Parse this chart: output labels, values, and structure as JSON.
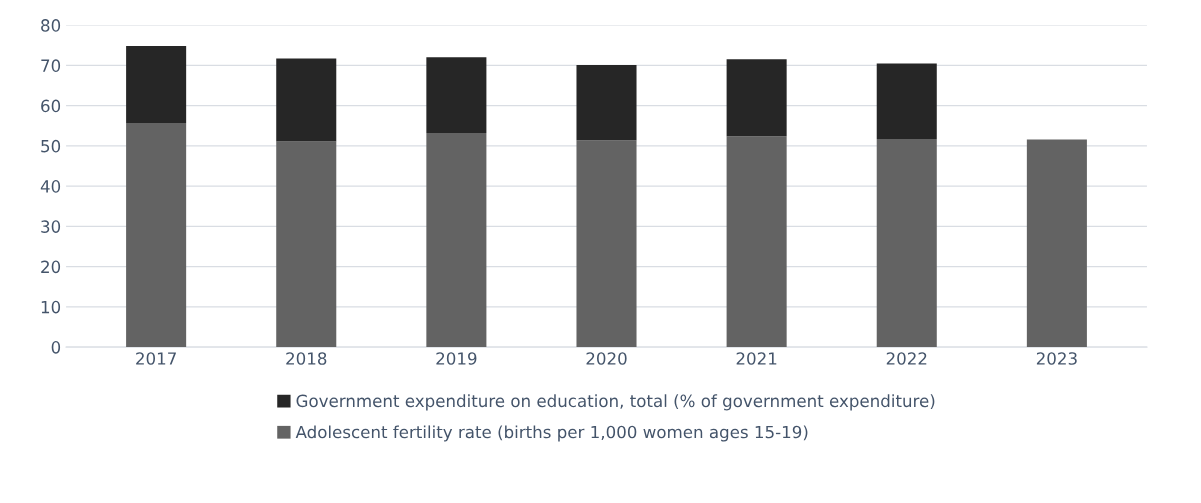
{
  "chart_data": {
    "type": "bar",
    "stacked": true,
    "categories": [
      "2017",
      "2018",
      "2019",
      "2020",
      "2021",
      "2022",
      "2023"
    ],
    "series": [
      {
        "name": "Adolescent fertility rate (births per 1,000 women ages 15-19)",
        "color": "#636363",
        "values": [
          55.7,
          51.1,
          53.2,
          51.4,
          52.4,
          51.7,
          51.6
        ]
      },
      {
        "name": "Government expenditure on education, total (% of government expenditure)",
        "color": "#262626",
        "values": [
          19.1,
          20.6,
          18.8,
          18.7,
          19.1,
          18.8,
          null
        ]
      }
    ],
    "ylim": [
      0,
      80
    ],
    "yticks": [
      0,
      10,
      20,
      30,
      40,
      50,
      60,
      70,
      80
    ],
    "grid": "y",
    "legend": "bottom"
  }
}
